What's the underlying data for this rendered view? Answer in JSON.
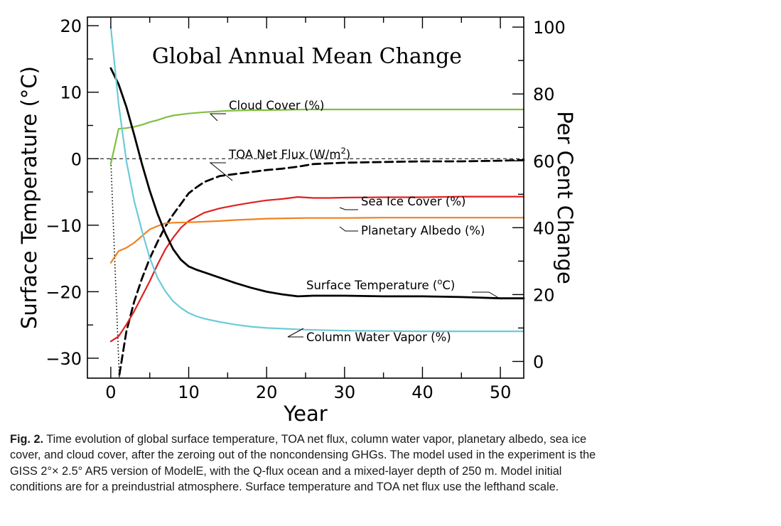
{
  "chart_data": {
    "type": "line",
    "title": "Global Annual Mean Change",
    "xlabel": "Year",
    "ylabel_left": "Surface Temperature (°C)",
    "ylabel_right": "Per Cent Change",
    "xlim": [
      -3,
      53
    ],
    "ylim_left": [
      -33,
      21.3
    ],
    "ylim_right": [
      -5,
      103
    ],
    "x_ticks": [
      0,
      10,
      20,
      30,
      40,
      50
    ],
    "x_tick_labels": [
      "0",
      "10",
      "20",
      "30",
      "40",
      "50"
    ],
    "y_left_ticks": [
      20,
      10,
      0,
      -10,
      -20,
      -30
    ],
    "y_left_tick_labels": [
      "20",
      "10",
      "0",
      "−10",
      "−20",
      "−30"
    ],
    "y_right_ticks": [
      100,
      80,
      60,
      40,
      20,
      0
    ],
    "y_right_tick_labels": [
      "100",
      "80",
      "60",
      "40",
      "20",
      "0"
    ],
    "zero_line": {
      "axis": "left",
      "value": 0,
      "style": "dashed"
    },
    "initial_drop": {
      "axis": "left",
      "x": [
        0,
        1.1
      ],
      "y": [
        0,
        -33
      ],
      "style": "dotted"
    },
    "series": [
      {
        "name": "Cloud Cover (%)",
        "axis": "left",
        "color": "#80c040",
        "style": "solid",
        "x": [
          0,
          1,
          2,
          3,
          4,
          5,
          6,
          7,
          8,
          10,
          12,
          15,
          18,
          20,
          25,
          30,
          35,
          40,
          45,
          50,
          53
        ],
        "y": [
          -0.8,
          4.5,
          4.6,
          4.8,
          5.1,
          5.5,
          5.8,
          6.2,
          6.5,
          6.8,
          7.0,
          7.2,
          7.3,
          7.3,
          7.4,
          7.4,
          7.4,
          7.4,
          7.4,
          7.4,
          7.4
        ]
      },
      {
        "name": "TOA Net Flux (W/m²)",
        "axis": "left",
        "color": "#000000",
        "style": "dashed",
        "x": [
          1.1,
          2,
          3,
          4,
          5,
          6,
          7,
          8,
          9,
          10,
          11,
          12,
          14,
          16,
          18,
          20,
          22,
          24,
          26,
          28,
          30,
          35,
          40,
          45,
          50,
          53
        ],
        "y": [
          -32.5,
          -26,
          -21.5,
          -18,
          -15,
          -12.5,
          -10.2,
          -8.4,
          -6.8,
          -5.2,
          -4.3,
          -3.5,
          -2.6,
          -2.3,
          -2.0,
          -1.7,
          -1.5,
          -1.2,
          -0.8,
          -0.7,
          -0.6,
          -0.5,
          -0.4,
          -0.4,
          -0.3,
          -0.2
        ]
      },
      {
        "name": "Sea Ice Cover (%)",
        "axis": "right",
        "color": "#e02020",
        "style": "solid",
        "x": [
          0,
          1,
          2,
          3,
          4,
          5,
          6,
          7,
          8,
          9,
          10,
          12,
          14,
          16,
          18,
          20,
          22,
          24,
          26,
          28,
          30,
          35,
          40,
          45,
          50,
          53
        ],
        "y": [
          6,
          7.5,
          11,
          15,
          19.5,
          24,
          29,
          33.5,
          37,
          40,
          42,
          44.5,
          45.8,
          46.7,
          47.5,
          48.2,
          48.6,
          49.2,
          48.9,
          48.9,
          49,
          49.1,
          49.1,
          49.3,
          49.3,
          49.3
        ]
      },
      {
        "name": "Planetary Albedo (%)",
        "axis": "right",
        "color": "#f08020",
        "style": "solid",
        "x": [
          0,
          1,
          2,
          3,
          4,
          5,
          6,
          7,
          8,
          10,
          12,
          14,
          16,
          18,
          20,
          25,
          30,
          35,
          40,
          45,
          50,
          53
        ],
        "y": [
          29.5,
          33,
          34,
          35.5,
          37.5,
          39.5,
          40.5,
          41.3,
          41.5,
          41.6,
          41.8,
          42,
          42.3,
          42.5,
          42.7,
          42.9,
          42.9,
          43,
          43,
          43,
          43,
          43
        ]
      },
      {
        "name": "Surface Temperature (°C)",
        "axis": "left",
        "color": "#000000",
        "style": "solid",
        "x": [
          0,
          1,
          2,
          3,
          4,
          5,
          6,
          7,
          8,
          9,
          10,
          11,
          12,
          14,
          16,
          18,
          20,
          22,
          24,
          26,
          28,
          30,
          35,
          40,
          45,
          50,
          53
        ],
        "y": [
          13.6,
          11.2,
          7.8,
          3.6,
          -0.8,
          -4.8,
          -8.3,
          -11.2,
          -13.6,
          -15.2,
          -16.2,
          -16.7,
          -17.1,
          -17.9,
          -18.7,
          -19.4,
          -20.0,
          -20.4,
          -20.7,
          -20.6,
          -20.6,
          -20.6,
          -20.7,
          -20.7,
          -20.8,
          -21.0,
          -21.0
        ]
      },
      {
        "name": "Column Water Vapor (%)",
        "axis": "right",
        "color": "#6ccad8",
        "style": "solid",
        "x": [
          0,
          1,
          2,
          3,
          4,
          5,
          6,
          7,
          8,
          9,
          10,
          11,
          12,
          14,
          16,
          18,
          20,
          25,
          30,
          35,
          40,
          45,
          50,
          53
        ],
        "y": [
          100,
          77,
          60,
          48,
          39,
          31,
          25,
          21,
          18,
          16,
          14.5,
          13.5,
          12.8,
          11.8,
          11,
          10.4,
          10,
          9.5,
          9.2,
          9.1,
          9,
          9,
          9,
          9
        ]
      }
    ],
    "annotations": [
      {
        "text": "Cloud Cover (%)",
        "series": 0
      },
      {
        "text": "TOA Net Flux (W/m",
        "sup": "2",
        "suffix": ")",
        "series": 1
      },
      {
        "text": "Sea Ice Cover (%)",
        "series": 2
      },
      {
        "text": "Planetary Albedo (%)",
        "series": 3
      },
      {
        "text": "Surface Temperature (",
        "sup": "o",
        "suffix": "C)",
        "series": 4
      },
      {
        "text": "Column Water Vapor (%)",
        "series": 5
      }
    ]
  },
  "caption": {
    "label": "Fig. 2.",
    "text": "Time evolution of global surface temperature, TOA net flux, column water vapor, planetary albedo, sea ice cover, and cloud cover, after the zeroing out of the noncondensing GHGs. The model used in the experiment is the GISS 2°× 2.5° AR5 version of ModelE, with the Q-flux ocean and a mixed-layer depth of 250 m. Model initial conditions are for a preindustrial atmosphere. Surface temperature and TOA net flux use the lefthand scale."
  }
}
